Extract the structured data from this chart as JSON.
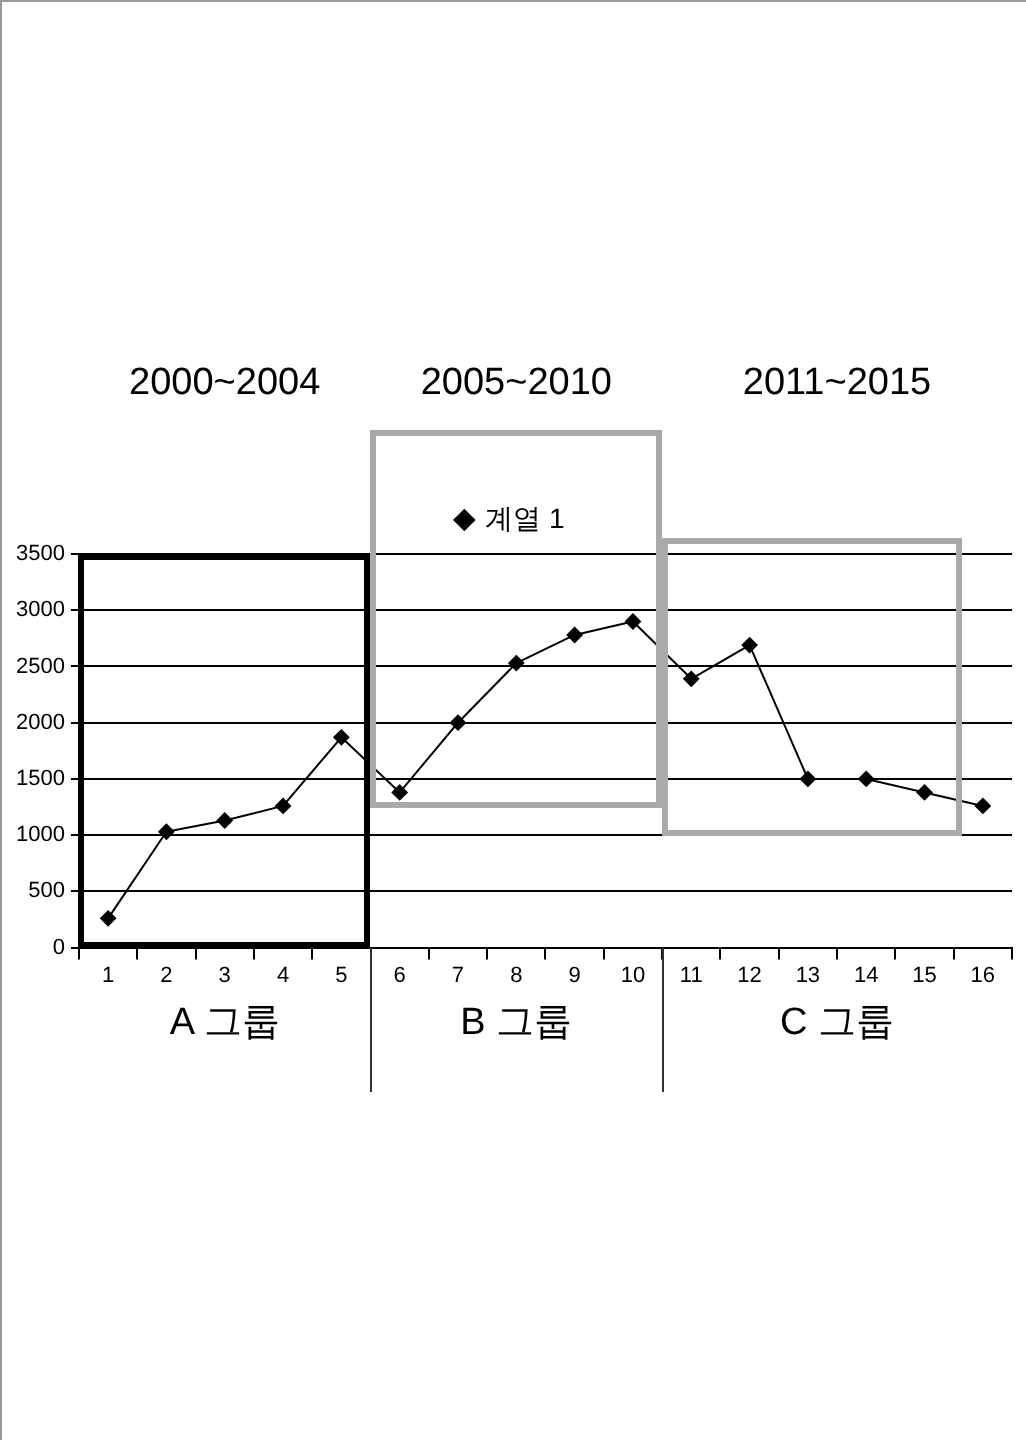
{
  "chart_data": {
    "type": "line",
    "categories": [
      "1",
      "2",
      "3",
      "4",
      "5",
      "6",
      "7",
      "8",
      "9",
      "10",
      "11",
      "12",
      "13",
      "14",
      "15",
      "16"
    ],
    "series": [
      {
        "name": "계열 1",
        "color": "#000000",
        "values": [
          260,
          1030,
          1130,
          1260,
          1870,
          1380,
          2000,
          2530,
          2780,
          2900,
          2390,
          2690,
          1500,
          1500,
          1380,
          1260
        ]
      }
    ],
    "ylim": [
      0,
      3500
    ],
    "yticks": [
      0,
      500,
      1000,
      1500,
      2000,
      2500,
      3000,
      3500
    ],
    "grid": "y",
    "legend": "top",
    "marker": "diamond",
    "line_style": "solid",
    "annotations": [
      "2000~2004",
      "2005~2010",
      "2011~2015",
      "A 그룹",
      "B 그룹",
      "C 그룹"
    ]
  }
}
